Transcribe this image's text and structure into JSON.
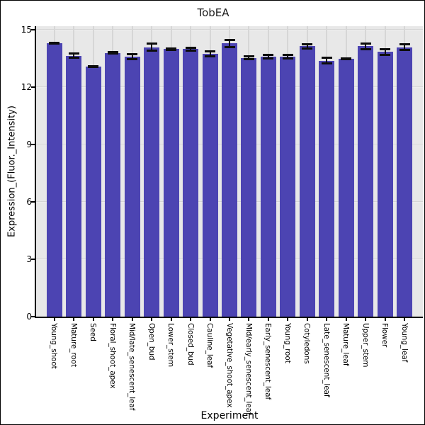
{
  "window": {
    "background": "#ffffff",
    "border_color": "#000000"
  },
  "chart_data": {
    "type": "bar",
    "title": "TobEA",
    "xlabel": "Experiment",
    "ylabel": "Expression_(Fluor._Intensity)",
    "ylim": [
      0,
      15.2
    ],
    "yticks": [
      0,
      3,
      6,
      9,
      12,
      15
    ],
    "grid": true,
    "legend": "none",
    "plot_bg": "#e8e8e8",
    "bar_color": "#4c44b2",
    "error_color": "#0d0d0d",
    "categories": [
      "Young_shoot",
      "Mature_root",
      "Seed",
      "Floral_shoot_apex",
      "Mid/late_senescent_leaf",
      "Open_bud",
      "Lower_stem",
      "Closed_bud",
      "Cauline_leaf",
      "Vegetative_shoot_apex",
      "Mid/early_senescent_leaf",
      "Early_senescent_leaf",
      "Young_root",
      "Cotyledons",
      "Late_senescent_leaf",
      "Mature_leaf",
      "Upper_stem",
      "Flower",
      "Young_leaf"
    ],
    "values": [
      14.3,
      13.65,
      13.1,
      13.8,
      13.6,
      14.1,
      14.0,
      14.0,
      13.75,
      14.3,
      13.55,
      13.6,
      13.6,
      14.15,
      13.4,
      13.5,
      14.15,
      13.85,
      14.1
    ],
    "errors": [
      0.08,
      0.16,
      0.07,
      0.1,
      0.18,
      0.25,
      0.1,
      0.13,
      0.2,
      0.25,
      0.12,
      0.15,
      0.15,
      0.16,
      0.19,
      0.06,
      0.2,
      0.2,
      0.2
    ]
  }
}
